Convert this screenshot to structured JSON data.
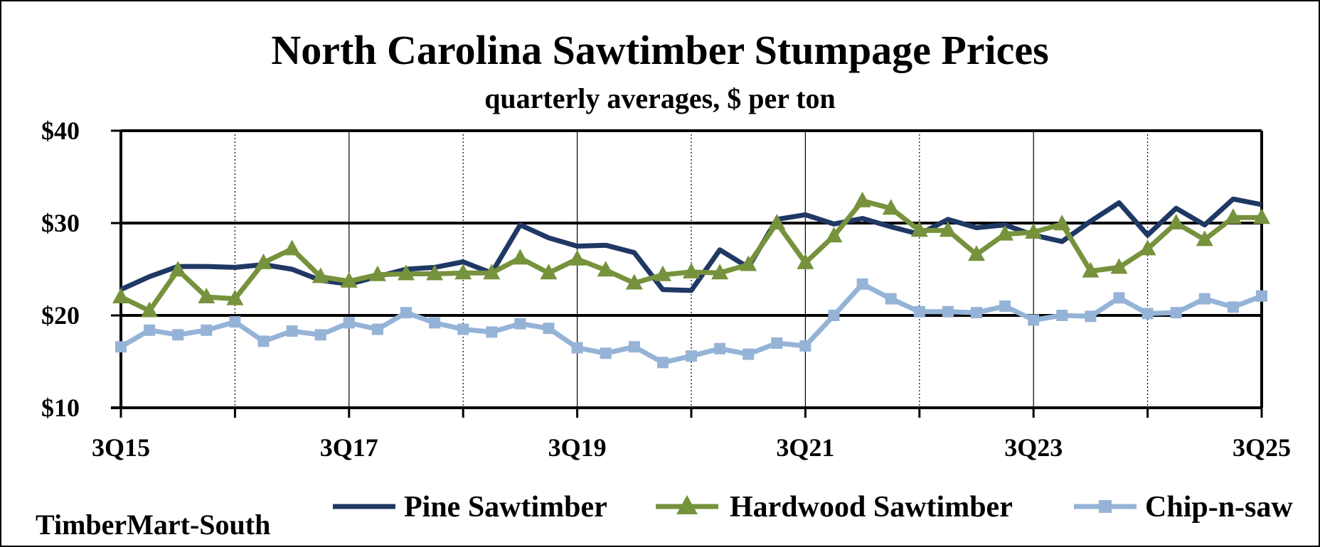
{
  "chart_data": {
    "type": "line",
    "title": "North Carolina Sawtimber Stumpage Prices",
    "subtitle": "quarterly averages, $ per ton",
    "source": "TimberMart-South",
    "ylim": [
      10,
      40
    ],
    "y_ticks": [
      10,
      20,
      30,
      40
    ],
    "y_tick_labels": [
      "$10",
      "$20",
      "$30",
      "$40"
    ],
    "y_gridlines": [
      20,
      30
    ],
    "x_tick_labels": [
      "3Q15",
      "3Q17",
      "3Q19",
      "3Q21",
      "3Q23",
      "3Q25"
    ],
    "categories": [
      "3Q15",
      "4Q15",
      "1Q16",
      "2Q16",
      "3Q16",
      "4Q16",
      "1Q17",
      "2Q17",
      "3Q17",
      "4Q17",
      "1Q18",
      "2Q18",
      "3Q18",
      "4Q18",
      "1Q19",
      "2Q19",
      "3Q19",
      "4Q19",
      "1Q20",
      "2Q20",
      "3Q20",
      "4Q20",
      "1Q21",
      "2Q21",
      "3Q21",
      "4Q21",
      "1Q22",
      "2Q22",
      "3Q22",
      "4Q22",
      "1Q23",
      "2Q23",
      "3Q23",
      "4Q23",
      "1Q24",
      "2Q24",
      "3Q24",
      "4Q24",
      "1Q25",
      "2Q25",
      "3Q25"
    ],
    "legend_position": "bottom",
    "series": [
      {
        "name": "Pine Sawtimber",
        "color": "#1F3864",
        "marker": "none",
        "values": [
          22.8,
          24.2,
          25.3,
          25.3,
          25.2,
          25.5,
          25.0,
          23.8,
          23.4,
          24.2,
          25.0,
          25.2,
          25.8,
          24.6,
          29.8,
          28.4,
          27.5,
          27.6,
          26.8,
          22.8,
          22.7,
          27.1,
          25.2,
          30.4,
          30.9,
          29.9,
          30.5,
          29.6,
          28.8,
          30.4,
          29.5,
          29.8,
          28.7,
          28.0,
          30.2,
          32.2,
          28.7,
          31.6,
          29.8,
          32.6,
          32.0
        ]
      },
      {
        "name": "Hardwood Sawtimber",
        "color": "#76923C",
        "marker": "triangle",
        "values": [
          22.0,
          20.5,
          24.9,
          22.0,
          21.8,
          25.7,
          27.2,
          24.2,
          23.7,
          24.4,
          24.5,
          24.5,
          24.6,
          24.6,
          26.2,
          24.6,
          26.1,
          24.9,
          23.5,
          24.4,
          24.7,
          24.6,
          25.5,
          30.0,
          25.7,
          28.6,
          32.4,
          31.6,
          29.2,
          29.2,
          26.6,
          28.8,
          29.0,
          29.9,
          24.8,
          25.2,
          27.2,
          30.0,
          28.2,
          30.6,
          30.6
        ]
      },
      {
        "name": "Chip-n-saw",
        "color": "#95B3D7",
        "marker": "square",
        "values": [
          16.6,
          18.4,
          17.9,
          18.4,
          19.3,
          17.2,
          18.3,
          17.9,
          19.2,
          18.5,
          20.3,
          19.2,
          18.5,
          18.2,
          19.1,
          18.6,
          16.5,
          15.9,
          16.6,
          14.9,
          15.6,
          16.4,
          15.8,
          17.0,
          16.7,
          20.0,
          23.4,
          21.8,
          20.4,
          20.4,
          20.3,
          21.0,
          19.5,
          20.0,
          19.9,
          21.9,
          20.2,
          20.3,
          21.8,
          20.9,
          22.1
        ]
      }
    ]
  }
}
